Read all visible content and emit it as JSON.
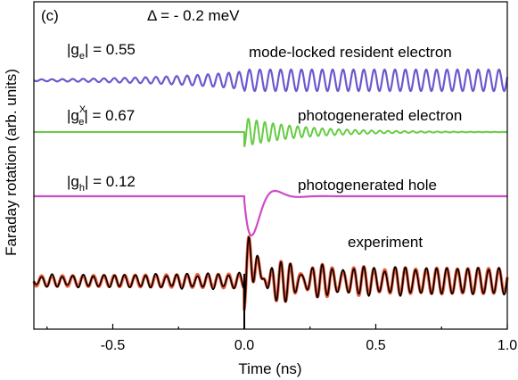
{
  "chart_data": {
    "type": "line",
    "panel_label": "(c)",
    "delta_label": "Δ = - 0.2 meV",
    "xlabel": "Time (ns)",
    "ylabel": "Faraday rotation (arb. units)",
    "xlim": [
      -0.8,
      1.0
    ],
    "x_ticks": [
      -0.5,
      0.0,
      0.5,
      1.0
    ],
    "x_tick_labels": [
      "-0.5",
      "0.0",
      "0.5",
      "1.0"
    ],
    "grid": false,
    "legend": "none",
    "colors": {
      "resident_electron": "#6a5acd",
      "photogenerated_electron": "#66cc44",
      "photogenerated_hole": "#d04ac8",
      "experiment_fit": "#f05a3a",
      "experiment": "#000000"
    },
    "annotations": {
      "ge_prefix": "|g",
      "ge_sub": "e",
      "ge_value": "| = 0.55",
      "gex_prefix": "|g",
      "gex_sup": "X",
      "gex_sub": "e",
      "gex_value": "| = 0.67",
      "gh_prefix": "|g",
      "gh_sub": "h",
      "gh_value": "| = 0.12"
    },
    "series": [
      {
        "name": "mode-locked resident electron",
        "g_factor": 0.55,
        "description_points": {
          "x": [
            -0.8,
            -0.5,
            -0.3,
            0.0,
            0.001,
            0.5,
            1.0
          ],
          "y": [
            1.0,
            0.6,
            0.3,
            0.1,
            1.0,
            1.0,
            1.0
          ]
        }
      },
      {
        "name": "photogenerated electron",
        "g_factor": 0.67,
        "description_points": {
          "x": [
            -0.8,
            0.0,
            0.001,
            0.1,
            0.3,
            0.5,
            1.0
          ],
          "y": [
            0.0,
            0.0,
            1.0,
            0.8,
            0.35,
            0.12,
            0.0
          ]
        }
      },
      {
        "name": "photogenerated hole",
        "g_factor": 0.12,
        "description_points": {
          "x": [
            -0.8,
            0.0,
            0.02,
            0.1,
            0.17,
            0.3,
            1.0
          ],
          "y": [
            0.0,
            0.0,
            -0.8,
            0.85,
            -0.05,
            0.0,
            0.0
          ]
        }
      },
      {
        "name": "experiment",
        "description_points": {
          "x": [
            -0.8,
            -0.4,
            0.0,
            0.01,
            0.05,
            0.2,
            0.5,
            1.0
          ],
          "y": [
            0.3,
            0.25,
            0.2,
            -1.0,
            0.7,
            0.5,
            0.6,
            0.6
          ]
        }
      }
    ]
  }
}
